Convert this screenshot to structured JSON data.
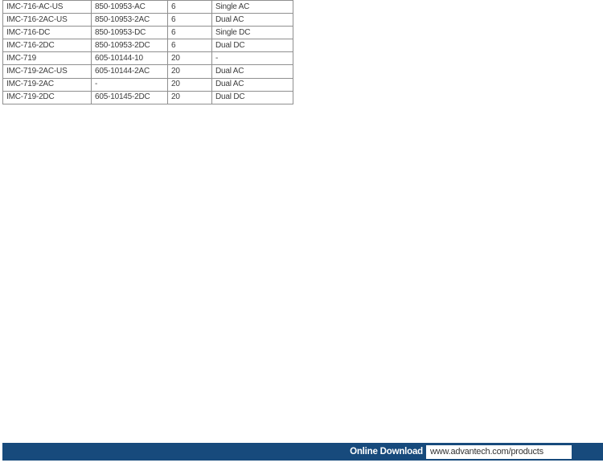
{
  "page": {
    "background": "#ffffff"
  },
  "table": {
    "description": "ordering information table (no header row visible, cropped)",
    "border_color": "#8f8f8f",
    "rows": [
      {
        "cells": [
          "IMC-716-AC-US",
          "850-10953-AC",
          "6",
          "Single AC"
        ]
      },
      {
        "cells": [
          "IMC-716-2AC-US",
          "850-10953-2AC",
          "6",
          "Dual AC"
        ]
      },
      {
        "cells": [
          "IMC-716-DC",
          "850-10953-DC",
          "6",
          "Single DC"
        ]
      },
      {
        "cells": [
          "IMC-716-2DC",
          "850-10953-2DC",
          "6",
          "Dual DC"
        ]
      },
      {
        "cells": [
          "IMC-719",
          "605-10144-10",
          "20",
          "-"
        ]
      },
      {
        "cells": [
          "IMC-719-2AC-US",
          "605-10144-2AC",
          "20",
          "Dual AC"
        ]
      },
      {
        "cells": [
          "IMC-719-2AC",
          "-",
          "20",
          "Dual AC"
        ]
      },
      {
        "cells": [
          "IMC-719-2DC",
          "605-10145-2DC",
          "20",
          "Dual DC"
        ]
      }
    ]
  },
  "footer": {
    "bar_color": "#174a7c",
    "label": "Online Download",
    "url": "www.advantech.com/products"
  }
}
